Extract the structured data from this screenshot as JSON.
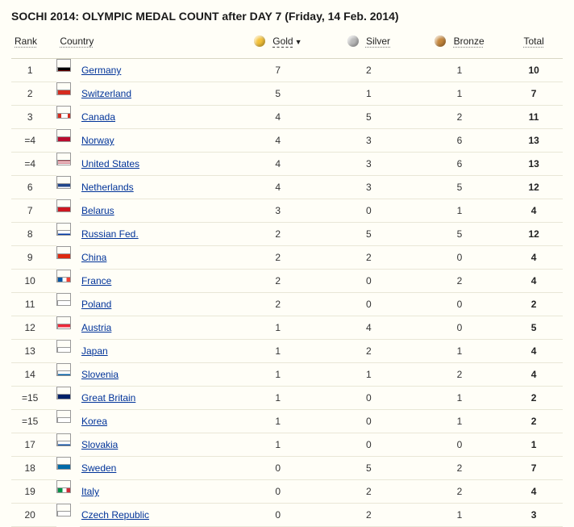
{
  "title": "SOCHI 2014:  OLYMPIC MEDAL COUNT after DAY 7   (Friday, 14 Feb. 2014)",
  "colors": {
    "page_bg": "#fffef7",
    "border": "#e9e7d7",
    "header_border": "#d9d7c4",
    "link": "#003399",
    "gold": "#f3c13a",
    "silver": "#b9b9b9",
    "bronze": "#c4863c"
  },
  "columns": {
    "rank": {
      "label": "Rank"
    },
    "country": {
      "label": "Country"
    },
    "gold": {
      "label": "Gold",
      "sorted": true,
      "sort_dir": "desc"
    },
    "silver": {
      "label": "Silver"
    },
    "bronze": {
      "label": "Bronze"
    },
    "total": {
      "label": "Total"
    }
  },
  "flags": {
    "Germany": {
      "css": "background:linear-gradient(#000 0 33%,#dd0000 33% 66%,#ffce00 66% 100%)"
    },
    "Switzerland": {
      "css": "background:#d52b1e"
    },
    "Canada": {
      "css": "background:linear-gradient(90deg,#d52b1e 0 25%,#fff 25% 75%,#d52b1e 75% 100%)"
    },
    "Norway": {
      "css": "background:#ba0c2f"
    },
    "United States": {
      "css": "background:repeating-linear-gradient(#b22234 0 1.2px,#fff 1.2px 2.4px)"
    },
    "Netherlands": {
      "css": "background:linear-gradient(#21468b 0 33%,#fff 33% 66%,#ae1c28 66% 100%)"
    },
    "Belarus": {
      "css": "background:linear-gradient(#ce1720 0 66%,#007c30 66% 100%)"
    },
    "Russian Fed.": {
      "css": "background:linear-gradient(#fff 0 33%,#0039a6 33% 66%,#d52b1e 66% 100%)"
    },
    "China": {
      "css": "background:#de2910"
    },
    "France": {
      "css": "background:linear-gradient(90deg,#0055a4 0 33%,#fff 33% 66%,#ef4135 66% 100%)"
    },
    "Poland": {
      "css": "background:linear-gradient(#fff 0 50%,#dc143c 50% 100%)"
    },
    "Austria": {
      "css": "background:linear-gradient(#ed2939 0 33%,#fff 33% 66%,#ed2939 66% 100%)"
    },
    "Japan": {
      "css": "background:#fff"
    },
    "Slovenia": {
      "css": "background:linear-gradient(#fff 0 33%,#005da4 33% 66%,#ed1c24 66% 100%)"
    },
    "Great Britain": {
      "css": "background:#012169"
    },
    "Korea": {
      "css": "background:#fff"
    },
    "Slovakia": {
      "css": "background:linear-gradient(#fff 0 33%,#0b4ea2 33% 66%,#ee1c25 66% 100%)"
    },
    "Sweden": {
      "css": "background:#006aa7"
    },
    "Italy": {
      "css": "background:linear-gradient(90deg,#009246 0 33%,#fff 33% 66%,#ce2b37 66% 100%)"
    },
    "Czech Republic": {
      "css": "background:linear-gradient(#fff 0 50%,#d7141a 50% 100%)"
    }
  },
  "rows": [
    {
      "rank": "1",
      "country": "Germany",
      "gold": 7,
      "silver": 2,
      "bronze": 1,
      "total": 10
    },
    {
      "rank": "2",
      "country": "Switzerland",
      "gold": 5,
      "silver": 1,
      "bronze": 1,
      "total": 7
    },
    {
      "rank": "3",
      "country": "Canada",
      "gold": 4,
      "silver": 5,
      "bronze": 2,
      "total": 11
    },
    {
      "rank": "=4",
      "country": "Norway",
      "gold": 4,
      "silver": 3,
      "bronze": 6,
      "total": 13
    },
    {
      "rank": "=4",
      "country": "United States",
      "gold": 4,
      "silver": 3,
      "bronze": 6,
      "total": 13
    },
    {
      "rank": "6",
      "country": "Netherlands",
      "gold": 4,
      "silver": 3,
      "bronze": 5,
      "total": 12
    },
    {
      "rank": "7",
      "country": "Belarus",
      "gold": 3,
      "silver": 0,
      "bronze": 1,
      "total": 4
    },
    {
      "rank": "8",
      "country": "Russian Fed.",
      "gold": 2,
      "silver": 5,
      "bronze": 5,
      "total": 12
    },
    {
      "rank": "9",
      "country": "China",
      "gold": 2,
      "silver": 2,
      "bronze": 0,
      "total": 4
    },
    {
      "rank": "10",
      "country": "France",
      "gold": 2,
      "silver": 0,
      "bronze": 2,
      "total": 4
    },
    {
      "rank": "11",
      "country": "Poland",
      "gold": 2,
      "silver": 0,
      "bronze": 0,
      "total": 2
    },
    {
      "rank": "12",
      "country": "Austria",
      "gold": 1,
      "silver": 4,
      "bronze": 0,
      "total": 5
    },
    {
      "rank": "13",
      "country": "Japan",
      "gold": 1,
      "silver": 2,
      "bronze": 1,
      "total": 4
    },
    {
      "rank": "14",
      "country": "Slovenia",
      "gold": 1,
      "silver": 1,
      "bronze": 2,
      "total": 4
    },
    {
      "rank": "=15",
      "country": "Great Britain",
      "gold": 1,
      "silver": 0,
      "bronze": 1,
      "total": 2
    },
    {
      "rank": "=15",
      "country": "Korea",
      "gold": 1,
      "silver": 0,
      "bronze": 1,
      "total": 2
    },
    {
      "rank": "17",
      "country": "Slovakia",
      "gold": 1,
      "silver": 0,
      "bronze": 0,
      "total": 1
    },
    {
      "rank": "18",
      "country": "Sweden",
      "gold": 0,
      "silver": 5,
      "bronze": 2,
      "total": 7
    },
    {
      "rank": "19",
      "country": "Italy",
      "gold": 0,
      "silver": 2,
      "bronze": 2,
      "total": 4
    },
    {
      "rank": "20",
      "country": "Czech Republic",
      "gold": 0,
      "silver": 2,
      "bronze": 1,
      "total": 3
    }
  ]
}
